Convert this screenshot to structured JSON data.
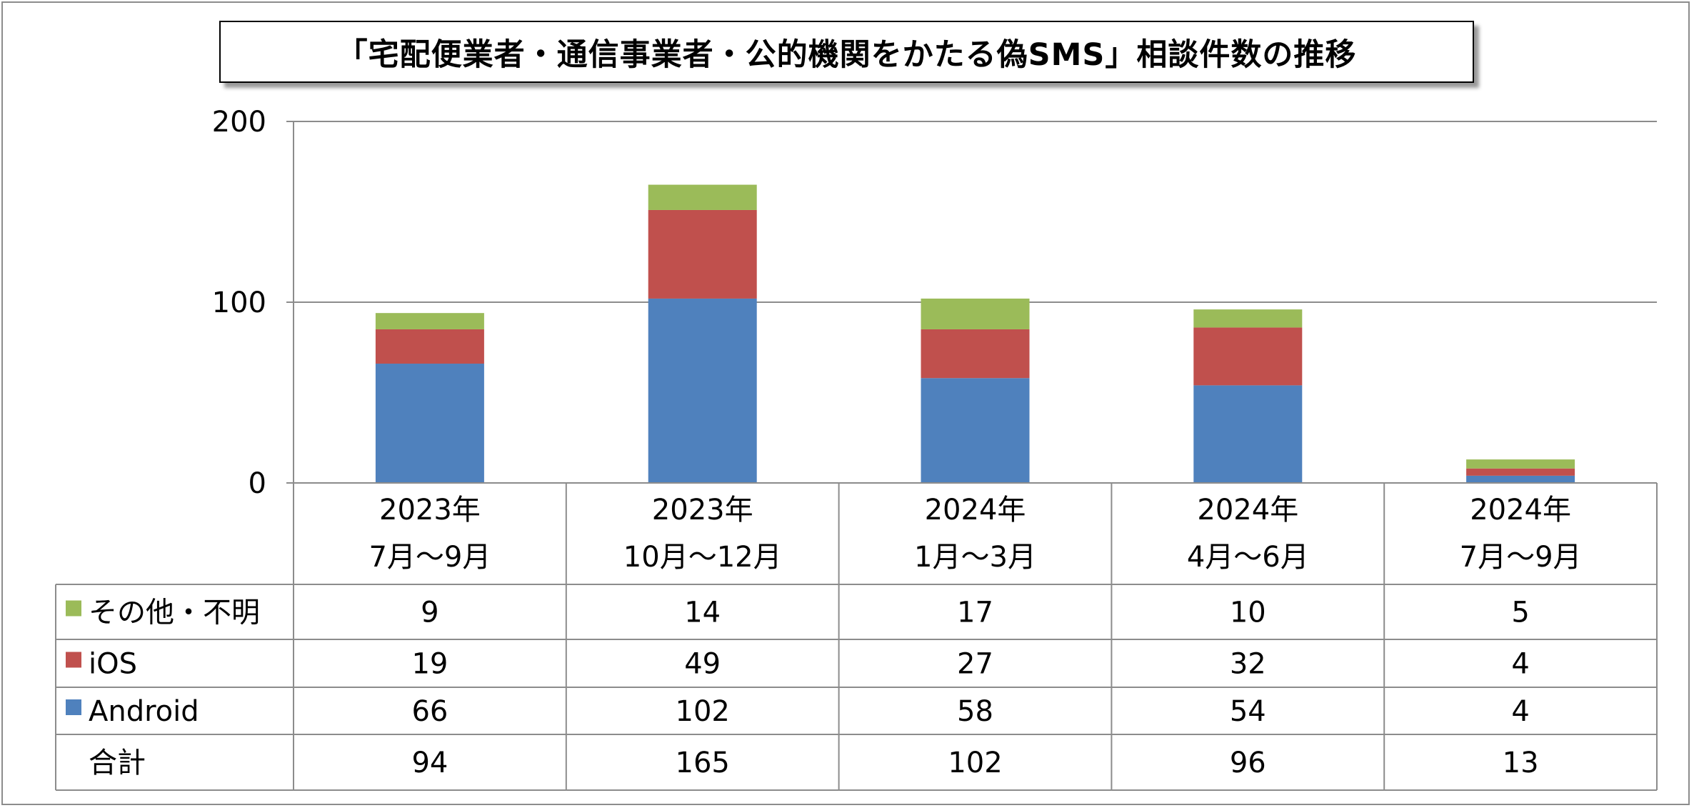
{
  "chart_data": {
    "type": "bar",
    "stacked": true,
    "title": "「宅配便業者・通信事業者・公的機関をかたる偽SMS」相談件数の推移",
    "categories": [
      [
        "2023年",
        "7月～9月"
      ],
      [
        "2023年",
        "10月～12月"
      ],
      [
        "2024年",
        "1月～3月"
      ],
      [
        "2024年",
        "4月～6月"
      ],
      [
        "2024年",
        "7月～9月"
      ]
    ],
    "series": [
      {
        "name": "Android",
        "color": "#4f81bd",
        "values": [
          66,
          102,
          58,
          54,
          4
        ]
      },
      {
        "name": "iOS",
        "color": "#c0504d",
        "values": [
          19,
          49,
          27,
          32,
          4
        ]
      },
      {
        "name": "その他・不明",
        "color": "#9bbb59",
        "values": [
          9,
          14,
          17,
          10,
          5
        ]
      }
    ],
    "totals_label": "合計",
    "totals": [
      94,
      165,
      102,
      96,
      13
    ],
    "yticks": [
      0,
      100,
      200
    ],
    "ylim": [
      0,
      200
    ],
    "grid": true,
    "legend": "data-table"
  }
}
